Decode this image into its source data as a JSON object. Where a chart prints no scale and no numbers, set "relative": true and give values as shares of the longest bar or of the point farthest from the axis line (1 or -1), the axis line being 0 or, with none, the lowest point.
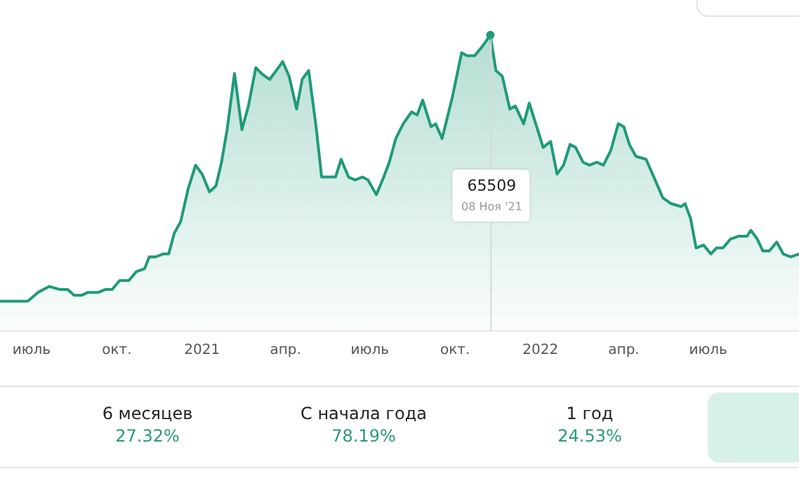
{
  "chart_data": [
    {
      "type": "area",
      "relative": true,
      "grid": false,
      "legend": false,
      "tick_labels": "x",
      "marker": "none",
      "x": [
        "2020-05-28",
        "2020-06-18",
        "2020-06-27",
        "2020-07-08",
        "2020-07-20",
        "2020-07-31",
        "2020-08-09",
        "2020-08-16",
        "2020-08-24",
        "2020-08-31",
        "2020-09-11",
        "2020-09-19",
        "2020-09-26",
        "2020-10-04",
        "2020-10-14",
        "2020-10-22",
        "2020-10-31",
        "2020-11-05",
        "2020-11-12",
        "2020-11-20",
        "2020-11-26",
        "2020-12-02",
        "2020-12-09",
        "2020-12-17",
        "2020-12-25",
        "2021-01-01",
        "2021-01-09",
        "2021-01-16",
        "2021-01-22",
        "2021-01-28",
        "2021-02-05",
        "2021-02-13",
        "2021-02-20",
        "2021-02-28",
        "2021-03-06",
        "2021-03-15",
        "2021-03-22",
        "2021-03-29",
        "2021-04-05",
        "2021-04-13",
        "2021-04-19",
        "2021-04-26",
        "2021-05-04",
        "2021-05-10",
        "2021-05-18",
        "2021-05-25",
        "2021-05-31",
        "2021-06-08",
        "2021-06-15",
        "2021-06-23",
        "2021-06-29",
        "2021-07-08",
        "2021-07-16",
        "2021-07-22",
        "2021-07-29",
        "2021-08-06",
        "2021-08-15",
        "2021-08-21",
        "2021-08-27",
        "2021-09-05",
        "2021-09-10",
        "2021-09-17",
        "2021-09-28",
        "2021-10-08",
        "2021-10-14",
        "2021-10-22",
        "2021-10-30",
        "2021-11-08",
        "2021-11-14",
        "2021-11-21",
        "2021-11-29",
        "2021-12-05",
        "2021-12-14",
        "2021-12-20",
        "2021-12-28",
        "2022-01-04",
        "2022-01-12",
        "2022-01-19",
        "2022-01-26",
        "2022-02-02",
        "2022-02-08",
        "2022-02-16",
        "2022-02-23",
        "2022-03-03",
        "2022-03-10",
        "2022-03-18",
        "2022-03-26",
        "2022-04-01",
        "2022-04-07",
        "2022-04-14",
        "2022-04-25",
        "2022-05-02",
        "2022-05-13",
        "2022-05-22",
        "2022-06-02",
        "2022-06-06",
        "2022-06-12",
        "2022-06-18",
        "2022-06-26",
        "2022-07-04",
        "2022-07-10",
        "2022-07-17",
        "2022-07-25",
        "2022-08-03",
        "2022-08-12",
        "2022-08-16",
        "2022-08-23",
        "2022-08-29",
        "2022-09-05",
        "2022-09-13",
        "2022-09-20",
        "2022-09-28",
        "2022-10-07"
      ],
      "series": [
        {
          "color": "#1f9a7a",
          "values": [
            0.1,
            0.1,
            0.1,
            0.13,
            0.15,
            0.14,
            0.14,
            0.12,
            0.12,
            0.13,
            0.13,
            0.14,
            0.14,
            0.17,
            0.17,
            0.2,
            0.21,
            0.25,
            0.25,
            0.26,
            0.26,
            0.33,
            0.37,
            0.48,
            0.56,
            0.53,
            0.47,
            0.49,
            0.57,
            0.68,
            0.87,
            0.68,
            0.76,
            0.89,
            0.87,
            0.85,
            0.88,
            0.91,
            0.86,
            0.75,
            0.85,
            0.88,
            0.69,
            0.52,
            0.52,
            0.52,
            0.58,
            0.52,
            0.51,
            0.52,
            0.51,
            0.46,
            0.52,
            0.57,
            0.65,
            0.7,
            0.74,
            0.73,
            0.78,
            0.69,
            0.7,
            0.65,
            0.79,
            0.94,
            0.93,
            0.93,
            0.96,
            1,
            0.88,
            0.86,
            0.75,
            0.76,
            0.7,
            0.77,
            0.69,
            0.62,
            0.64,
            0.53,
            0.56,
            0.63,
            0.62,
            0.57,
            0.56,
            0.57,
            0.56,
            0.61,
            0.7,
            0.69,
            0.63,
            0.59,
            0.58,
            0.53,
            0.45,
            0.43,
            0.42,
            0.43,
            0.38,
            0.28,
            0.29,
            0.26,
            0.28,
            0.28,
            0.31,
            0.32,
            0.32,
            0.34,
            0.31,
            0.27,
            0.27,
            0.3,
            0.26,
            0.25,
            0.26
          ]
        }
      ],
      "xlim": [
        "2020-05-28",
        "2022-10-07"
      ],
      "ref_lines": [
        {
          "axis": "x",
          "value": "2021-11-08",
          "color": "#d6d9dc"
        }
      ],
      "xticks": [
        {
          "value": "2020-07-01",
          "label": "июль"
        },
        {
          "value": "2020-10-01",
          "label": "окт."
        },
        {
          "value": "2021-01-01",
          "label": "2021"
        },
        {
          "value": "2021-04-01",
          "label": "апр."
        },
        {
          "value": "2021-07-01",
          "label": "июль"
        },
        {
          "value": "2021-10-01",
          "label": "окт."
        },
        {
          "value": "2022-01-01",
          "label": "2022"
        },
        {
          "value": "2022-04-01",
          "label": "апр."
        },
        {
          "value": "2022-07-01",
          "label": "июль"
        }
      ],
      "annotations": [
        "65509",
        "08 Ноя '21"
      ]
    },
    {
      "type": "other",
      "annotations": [
        "6 месяцев",
        "27.32%",
        "С начала года",
        "78.19%",
        "1 год",
        "24.53%"
      ]
    }
  ]
}
